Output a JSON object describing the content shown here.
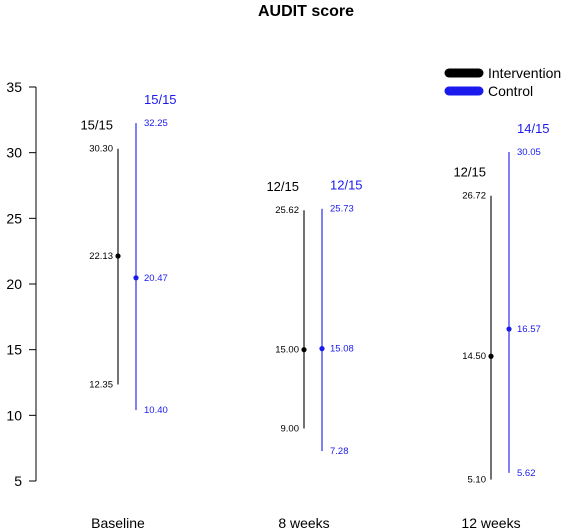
{
  "chart_data": {
    "type": "errorbar",
    "title": "AUDIT score",
    "xlabel": "",
    "ylabel": "",
    "ylim": [
      5,
      35
    ],
    "yticks": [
      5,
      10,
      15,
      20,
      25,
      30,
      35
    ],
    "categories": [
      "Baseline",
      "8 weeks",
      "12 weeks"
    ],
    "legend_position": "top-right",
    "series": [
      {
        "name": "Intervention",
        "color": "#000000",
        "points": [
          {
            "category": "Baseline",
            "n_label": "15/15",
            "mean": 22.13,
            "low": 12.35,
            "high": 30.3,
            "mean_label": "22.13",
            "low_label": "12.35",
            "high_label": "30.30"
          },
          {
            "category": "8 weeks",
            "n_label": "12/15",
            "mean": 15.0,
            "low": 9.0,
            "high": 25.62,
            "mean_label": "15.00",
            "low_label": "9.00",
            "high_label": "25.62"
          },
          {
            "category": "12 weeks",
            "n_label": "12/15",
            "mean": 14.5,
            "low": 5.1,
            "high": 26.72,
            "mean_label": "14.50",
            "low_label": "5.10",
            "high_label": "26.72"
          }
        ]
      },
      {
        "name": "Control",
        "color": "#1a1aee",
        "points": [
          {
            "category": "Baseline",
            "n_label": "15/15",
            "mean": 20.47,
            "low": 10.4,
            "high": 32.25,
            "mean_label": "20.47",
            "low_label": "10.40",
            "high_label": "32.25"
          },
          {
            "category": "8 weeks",
            "n_label": "12/15",
            "mean": 15.08,
            "low": 7.28,
            "high": 25.73,
            "mean_label": "15.08",
            "low_label": "7.28",
            "high_label": "25.73"
          },
          {
            "category": "12 weeks",
            "n_label": "14/15",
            "mean": 16.57,
            "low": 5.62,
            "high": 30.05,
            "mean_label": "16.57",
            "low_label": "5.62",
            "high_label": "30.05"
          }
        ]
      }
    ]
  }
}
